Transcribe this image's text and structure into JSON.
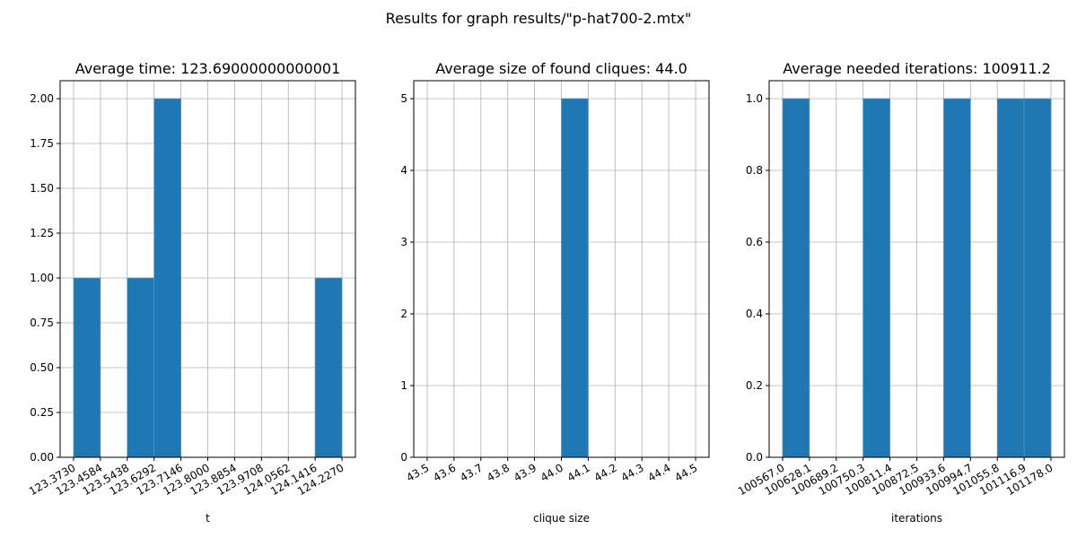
{
  "title": "Results for graph results/\"p-hat700-2.mtx\"",
  "chart_data": [
    {
      "type": "histogram",
      "title": "Average time: 123.69000000000001",
      "x_label": "t",
      "color": "#1f77b4",
      "grid": true,
      "bins": [
        123.373,
        123.4584,
        123.5438,
        123.6292,
        123.7146,
        123.8,
        123.8854,
        123.9708,
        124.0562,
        124.1416,
        124.227
      ],
      "values": [
        1,
        0,
        1,
        2,
        0,
        0,
        0,
        0,
        0,
        1
      ],
      "xlim": [
        123.3303,
        124.2697
      ],
      "xticks": [
        {
          "value": 123.373,
          "label": "123.3730"
        },
        {
          "value": 123.4584,
          "label": "123.4584"
        },
        {
          "value": 123.5438,
          "label": "123.5438"
        },
        {
          "value": 123.6292,
          "label": "123.6292"
        },
        {
          "value": 123.7146,
          "label": "123.7146"
        },
        {
          "value": 123.8,
          "label": "123.8000"
        },
        {
          "value": 123.8854,
          "label": "123.8854"
        },
        {
          "value": 123.9708,
          "label": "123.9708"
        },
        {
          "value": 124.0562,
          "label": "124.0562"
        },
        {
          "value": 124.1416,
          "label": "124.1416"
        },
        {
          "value": 124.227,
          "label": "124.2270"
        }
      ],
      "ylim": [
        0,
        2.1
      ],
      "yticks": [
        {
          "value": 0,
          "label": "0.00"
        },
        {
          "value": 0.25,
          "label": "0.25"
        },
        {
          "value": 0.5,
          "label": "0.50"
        },
        {
          "value": 0.75,
          "label": "0.75"
        },
        {
          "value": 1,
          "label": "1.00"
        },
        {
          "value": 1.25,
          "label": "1.25"
        },
        {
          "value": 1.5,
          "label": "1.50"
        },
        {
          "value": 1.75,
          "label": "1.75"
        },
        {
          "value": 2,
          "label": "2.00"
        }
      ]
    },
    {
      "type": "histogram",
      "title": "Average size of found cliques: 44.0",
      "x_label": "clique size",
      "color": "#1f77b4",
      "grid": true,
      "bins": [
        43.5,
        43.6,
        43.7,
        43.8,
        43.9,
        44.0,
        44.1,
        44.2,
        44.3,
        44.4,
        44.5
      ],
      "values": [
        0,
        0,
        0,
        0,
        0,
        5,
        0,
        0,
        0,
        0
      ],
      "xlim": [
        43.45,
        44.55
      ],
      "xticks": [
        43.5,
        43.6,
        43.7,
        43.8,
        43.9,
        {
          "value": 44.0,
          "label": "44.0"
        },
        44.1,
        44.2,
        44.3,
        44.4,
        44.5
      ],
      "ylim": [
        0,
        5.25
      ],
      "yticks": [
        0,
        1,
        2,
        3,
        4,
        5
      ]
    },
    {
      "type": "histogram",
      "title": "Average needed iterations: 100911.2",
      "x_label": "iterations",
      "color": "#1f77b4",
      "grid": true,
      "bins": [
        100567.0,
        100628.1,
        100689.2,
        100750.3,
        100811.4,
        100872.5,
        100933.6,
        100994.7,
        101055.8,
        101116.9,
        101178.0
      ],
      "values": [
        1,
        0,
        0,
        1,
        0,
        0,
        1,
        0,
        1,
        1
      ],
      "xlim": [
        100536.45,
        101208.55
      ],
      "xticks": [
        {
          "value": 100567.0,
          "label": "100567.0"
        },
        100628.1,
        100689.2,
        100750.3,
        100811.4,
        100872.5,
        100933.6,
        100994.7,
        101055.8,
        101116.9,
        {
          "value": 101178.0,
          "label": "101178.0"
        }
      ],
      "ylim": [
        0,
        1.05
      ],
      "yticks": [
        {
          "value": 0,
          "label": "0.0"
        },
        0.2,
        0.4,
        0.6,
        0.8,
        {
          "value": 1,
          "label": "1.0"
        }
      ]
    }
  ]
}
